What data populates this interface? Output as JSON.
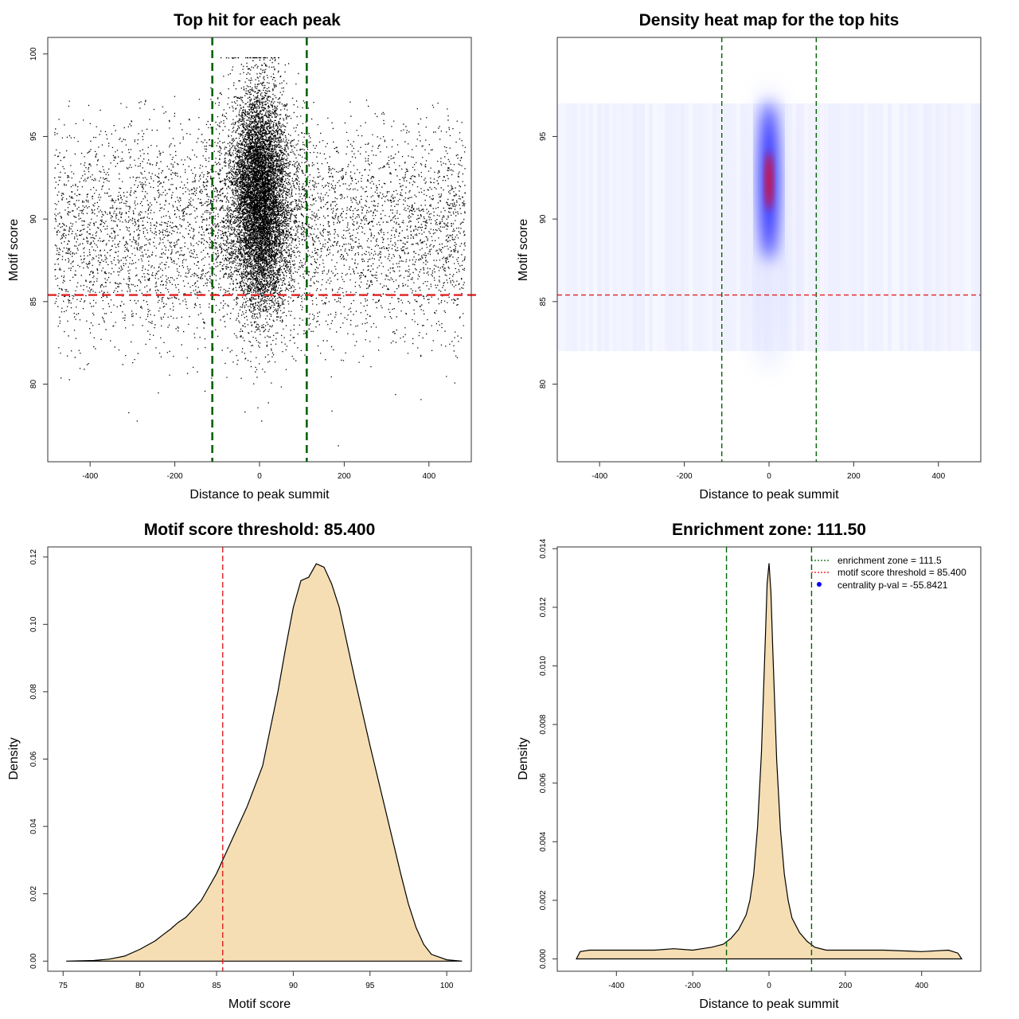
{
  "chart_data": [
    {
      "id": "scatter",
      "type": "scatter",
      "title": "Top hit for each peak",
      "xlabel": "Distance to peak summit",
      "ylabel": "Motif score",
      "xlim": [
        -500,
        500
      ],
      "ylim": [
        75.3,
        101
      ],
      "xticks": [
        -400,
        -200,
        0,
        200,
        400
      ],
      "yticks": [
        80,
        85,
        90,
        95,
        100
      ],
      "threshold_line": 85.4,
      "zone_lines": [
        -111.5,
        111.5
      ],
      "point_cloud": {
        "background": {
          "x_range": [
            -485,
            485
          ],
          "score_mean": 89.2,
          "score_sd": 3.3,
          "count": 5200
        },
        "central": {
          "x_mean": 0,
          "x_sd": 30,
          "score_mean": 91.3,
          "score_sd": 3.3,
          "count": 9000
        },
        "outliers": [
          {
            "x": -290,
            "y": 77.8
          },
          {
            "x": -310,
            "y": 78.3
          },
          {
            "x": -240,
            "y": 79.5
          },
          {
            "x": -130,
            "y": 79.6
          },
          {
            "x": -5,
            "y": 78.6
          },
          {
            "x": 20,
            "y": 78.9
          },
          {
            "x": 170,
            "y": 78.4
          },
          {
            "x": 185,
            "y": 76.3
          },
          {
            "x": 320,
            "y": 79.4
          },
          {
            "x": 380,
            "y": 79.1
          },
          {
            "x": -470,
            "y": 80.4
          },
          {
            "x": -450,
            "y": 80.3
          },
          {
            "x": 440,
            "y": 80.5
          },
          {
            "x": 460,
            "y": 80.1
          }
        ]
      }
    },
    {
      "id": "heatmap",
      "type": "heatmap",
      "title": "Density heat map for the top hits",
      "xlabel": "Distance to peak summit",
      "ylabel": "Motif score",
      "xlim": [
        -500,
        500
      ],
      "ylim": [
        75.3,
        101
      ],
      "xticks": [
        -400,
        -200,
        0,
        200,
        400
      ],
      "yticks": [
        80,
        85,
        90,
        95
      ],
      "threshold_line": 85.4,
      "zone_lines": [
        -111.5,
        111.5
      ],
      "density_peak": {
        "x": 0,
        "y": 92.3
      },
      "colors": {
        "low": "#ffffff",
        "mid": "#0000ff",
        "high": "#ff0000"
      }
    },
    {
      "id": "score-density",
      "type": "area",
      "title": "Motif score threshold: 85.400",
      "xlabel": "Motif score",
      "ylabel": "Density",
      "xlim": [
        74,
        101.6
      ],
      "ylim": [
        -0.003,
        0.123
      ],
      "xticks": [
        75,
        80,
        85,
        90,
        95,
        100
      ],
      "yticks": [
        0.0,
        0.02,
        0.04,
        0.06,
        0.08,
        0.1,
        0.12
      ],
      "ytick_labels": [
        "0.00",
        "0.02",
        "0.04",
        "0.06",
        "0.08",
        "0.10",
        "0.12"
      ],
      "threshold_line": 85.4,
      "fill_color": "#f5deb3",
      "x": [
        75.2,
        77,
        78,
        79,
        80,
        81,
        81.5,
        82,
        82.5,
        83,
        84,
        85,
        86,
        87,
        88,
        89,
        89.5,
        90,
        90.5,
        91,
        91.5,
        92,
        92.5,
        93,
        94,
        95,
        96,
        97,
        97.5,
        98,
        98.5,
        99,
        100,
        101
      ],
      "y": [
        0.0,
        0.0002,
        0.0006,
        0.0015,
        0.0035,
        0.006,
        0.0078,
        0.0095,
        0.0115,
        0.013,
        0.018,
        0.026,
        0.036,
        0.046,
        0.058,
        0.08,
        0.093,
        0.105,
        0.113,
        0.114,
        0.118,
        0.117,
        0.112,
        0.105,
        0.084,
        0.064,
        0.045,
        0.026,
        0.017,
        0.01,
        0.005,
        0.002,
        0.0004,
        0.0
      ]
    },
    {
      "id": "summit-density",
      "type": "area",
      "title": "Enrichment zone: 111.50",
      "xlabel": "Distance to peak summit",
      "ylabel": "Density",
      "xlim": [
        -555,
        555
      ],
      "ylim": [
        -0.00042,
        0.01406
      ],
      "xticks": [
        -400,
        -200,
        0,
        200,
        400
      ],
      "yticks": [
        0.0,
        0.002,
        0.004,
        0.006,
        0.008,
        0.01,
        0.012,
        0.014
      ],
      "ytick_labels": [
        "0.000",
        "0.002",
        "0.004",
        "0.006",
        "0.008",
        "0.010",
        "0.012",
        "0.014"
      ],
      "zone_lines": [
        -111.5,
        111.5
      ],
      "fill_color": "#f5deb3",
      "x": [
        -505,
        -495,
        -470,
        -400,
        -300,
        -250,
        -200,
        -150,
        -120,
        -100,
        -80,
        -60,
        -50,
        -40,
        -30,
        -20,
        -10,
        -5,
        0,
        5,
        10,
        20,
        30,
        40,
        50,
        60,
        80,
        100,
        120,
        150,
        200,
        300,
        400,
        470,
        495,
        505
      ],
      "y": [
        0.0,
        0.00025,
        0.0003,
        0.0003,
        0.0003,
        0.00035,
        0.0003,
        0.0004,
        0.0005,
        0.0007,
        0.001,
        0.0015,
        0.002,
        0.0029,
        0.0045,
        0.007,
        0.0108,
        0.0128,
        0.0135,
        0.0125,
        0.0105,
        0.0068,
        0.0044,
        0.0029,
        0.002,
        0.0014,
        0.0009,
        0.0006,
        0.0004,
        0.0003,
        0.0003,
        0.0003,
        0.00025,
        0.0003,
        0.0002,
        0.0
      ],
      "legend": {
        "placement": "top-right",
        "entries": [
          {
            "label": "enrichment zone = 111.5",
            "style": "dotted-line",
            "color": "#006400"
          },
          {
            "label": "motif score threshold = 85.400",
            "style": "dotted-line",
            "color": "#ff0000"
          },
          {
            "label": "centrality p-val = -55.8421",
            "style": "point",
            "color": "#0000ff"
          }
        ]
      }
    }
  ]
}
